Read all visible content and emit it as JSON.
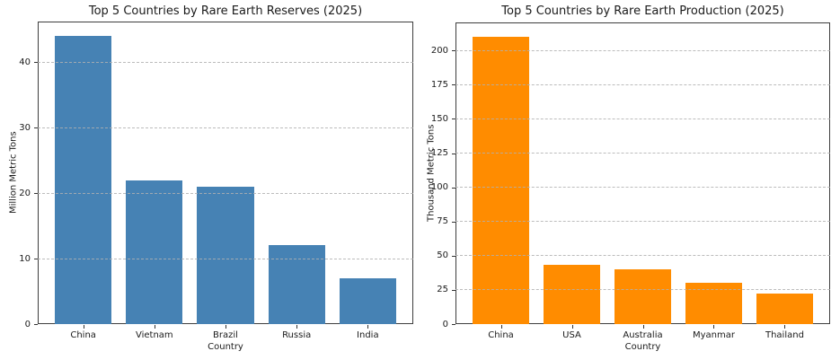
{
  "figure": {
    "background_color": "#ffffff",
    "grid_color": "#b0b0b0",
    "spine_color": "#3d3d3d",
    "text_color": "#1a1a1a"
  },
  "chart_data": [
    {
      "type": "bar",
      "title": "Top 5 Countries by Rare Earth Reserves (2025)",
      "xlabel": "Country",
      "ylabel": "Million Metric Tons",
      "categories": [
        "China",
        "Vietnam",
        "Brazil",
        "Russia",
        "India"
      ],
      "values": [
        44,
        22,
        21,
        12,
        7
      ],
      "bar_color": "#4682B4",
      "ylim": [
        0,
        46.2
      ],
      "yticks": [
        0,
        10,
        20,
        30,
        40
      ],
      "grid": "horizontal dashed, drawn over bars",
      "legend": "none"
    },
    {
      "type": "bar",
      "title": "Top 5 Countries by Rare Earth Production (2025)",
      "xlabel": "Country",
      "ylabel": "Thousand Metric Tons",
      "categories": [
        "China",
        "USA",
        "Australia",
        "Myanmar",
        "Thailand"
      ],
      "values": [
        210,
        43,
        40,
        30,
        22
      ],
      "bar_color": "#FF8C00",
      "ylim": [
        0,
        220.5
      ],
      "yticks": [
        0,
        25,
        50,
        75,
        100,
        125,
        150,
        175,
        200
      ],
      "grid": "horizontal dashed, drawn over bars",
      "legend": "none"
    }
  ]
}
